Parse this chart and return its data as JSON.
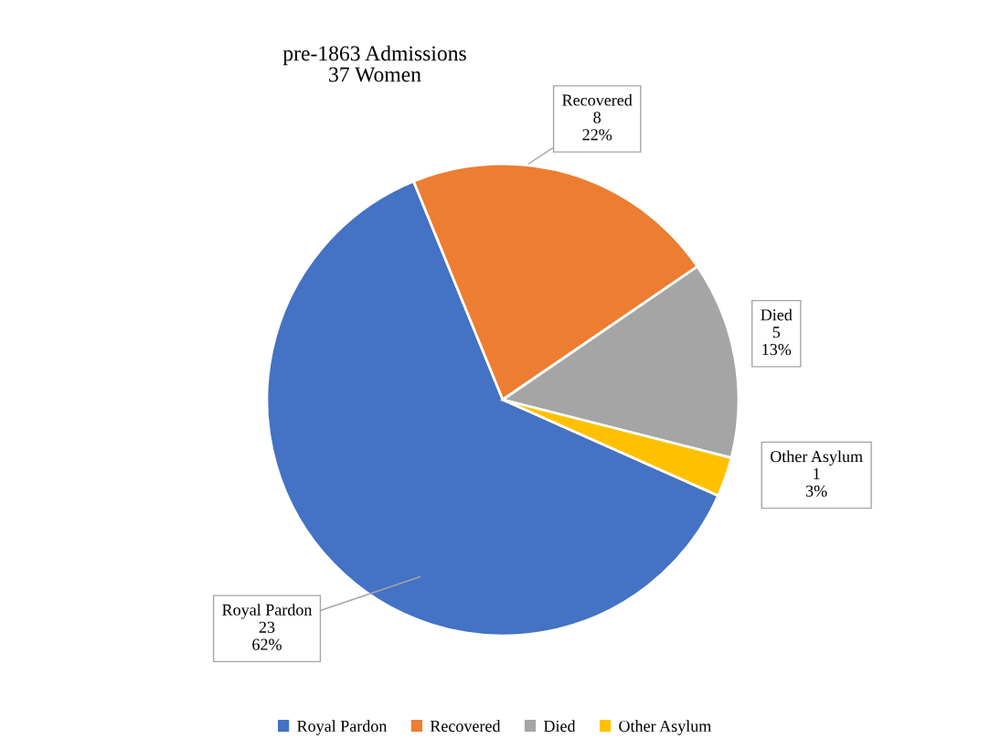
{
  "chart_data": {
    "type": "pie",
    "title": "pre-1863 Admissions\n37 Women",
    "categories": [
      "Royal Pardon",
      "Recovered",
      "Died",
      "Other Asylum"
    ],
    "values": [
      23,
      8,
      5,
      1
    ],
    "colors": [
      "#4472c4",
      "#ed7d31",
      "#a5a5a5",
      "#ffc000"
    ],
    "value_labels": [
      "23\n62%",
      "8\n22%",
      "5\n13%",
      "1\n3%"
    ],
    "legend": "bottom"
  }
}
